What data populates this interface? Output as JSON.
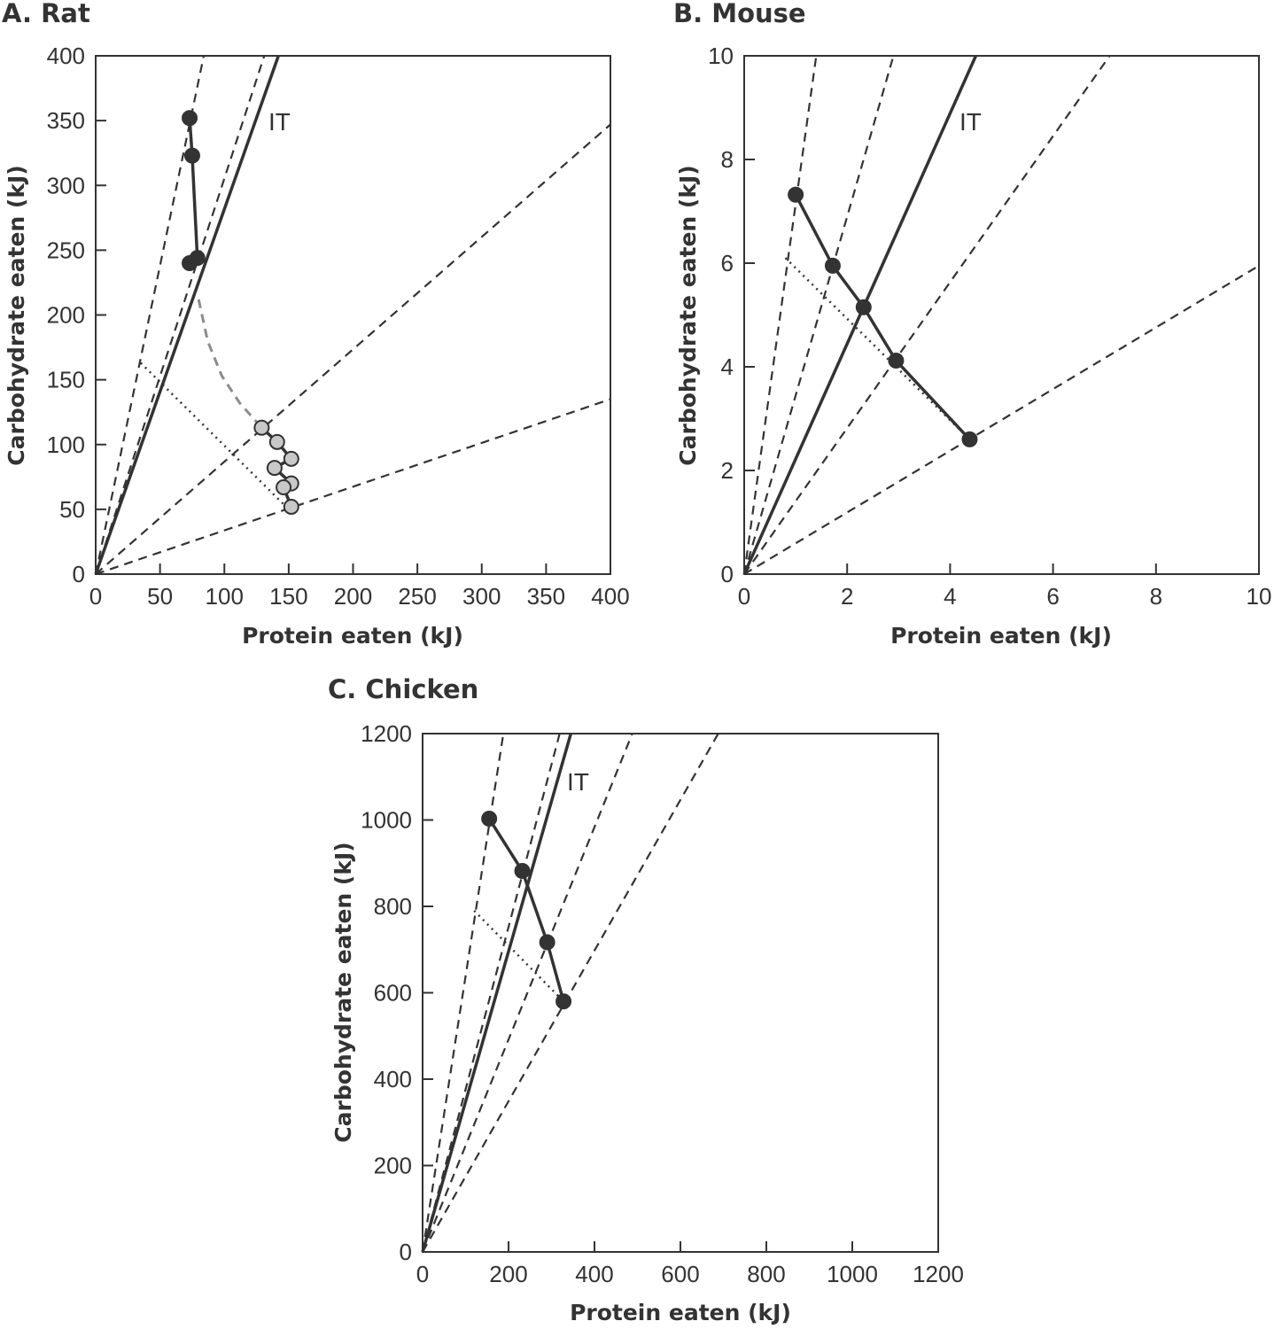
{
  "chart_data": [
    {
      "type": "line",
      "title": "A. Rat",
      "xlabel": "Protein eaten (kJ)",
      "ylabel": "Carbohydrate eaten (kJ)",
      "xlim": [
        0,
        400
      ],
      "ylim": [
        0,
        400
      ],
      "xticks": [
        "0",
        "50",
        "100",
        "150",
        "200",
        "250",
        "300",
        "350",
        "400"
      ],
      "yticks": [
        "0",
        "50",
        "100",
        "150",
        "200",
        "250",
        "300",
        "350",
        "400"
      ],
      "grid": false,
      "annotation": "IT",
      "rails_dashed": [
        {
          "x": [
            0,
            84
          ],
          "y": [
            0,
            400
          ]
        },
        {
          "x": [
            0,
            131
          ],
          "y": [
            0,
            400
          ]
        },
        {
          "x": [
            0,
            400
          ],
          "y": [
            0,
            347
          ]
        },
        {
          "x": [
            0,
            400
          ],
          "y": [
            0,
            135
          ]
        }
      ],
      "rail_solid": {
        "x": [
          0,
          142
        ],
        "y": [
          0,
          400
        ]
      },
      "series": [
        {
          "style": "filled-black",
          "x": [
            73,
            75,
            79,
            73
          ],
          "y": [
            352,
            323,
            244,
            240
          ]
        },
        {
          "style": "filled-gray",
          "x": [
            129,
            141,
            152,
            139,
            152,
            146,
            152
          ],
          "y": [
            113,
            102,
            89,
            82,
            70,
            67,
            52
          ]
        }
      ],
      "dotted_line": {
        "x": [
          35,
          148
        ],
        "y": [
          163,
          52
        ]
      },
      "gray_dashed_curve": {
        "x": [
          80,
          87,
          98,
          112,
          129
        ],
        "y": [
          212,
          180,
          153,
          132,
          113
        ]
      }
    },
    {
      "type": "line",
      "title": "B. Mouse",
      "xlabel": "Protein eaten (kJ)",
      "ylabel": "Carbohydrate eaten (kJ)",
      "xlim": [
        0,
        10
      ],
      "ylim": [
        0,
        10
      ],
      "xticks": [
        "0",
        "2",
        "4",
        "6",
        "8",
        "10"
      ],
      "yticks": [
        "0",
        "2",
        "4",
        "6",
        "8",
        "10"
      ],
      "grid": false,
      "annotation": "IT",
      "rails_dashed": [
        {
          "x": [
            0,
            1.4
          ],
          "y": [
            0,
            10
          ]
        },
        {
          "x": [
            0,
            2.9
          ],
          "y": [
            0,
            10
          ]
        },
        {
          "x": [
            0,
            7.1
          ],
          "y": [
            0,
            10
          ]
        },
        {
          "x": [
            0,
            10
          ],
          "y": [
            0,
            5.95
          ]
        }
      ],
      "rail_solid": {
        "x": [
          0,
          4.5
        ],
        "y": [
          0,
          10
        ]
      },
      "series": [
        {
          "style": "filled-black",
          "x": [
            1.0,
            1.72,
            2.32,
            2.95,
            4.38
          ],
          "y": [
            7.32,
            5.95,
            5.15,
            4.12,
            2.6
          ]
        }
      ],
      "dotted_line": {
        "x": [
          0.8,
          4.38
        ],
        "y": [
          6.1,
          2.6
        ]
      }
    },
    {
      "type": "line",
      "title": "C. Chicken",
      "xlabel": "Protein eaten (kJ)",
      "ylabel": "Carbohydrate eaten (kJ)",
      "xlim": [
        0,
        1200
      ],
      "ylim": [
        0,
        1200
      ],
      "xticks": [
        "0",
        "200",
        "400",
        "600",
        "800",
        "1000",
        "1200"
      ],
      "yticks": [
        "0",
        "200",
        "400",
        "600",
        "800",
        "1000",
        "1200"
      ],
      "grid": false,
      "annotation": "IT",
      "rails_dashed": [
        {
          "x": [
            0,
            188
          ],
          "y": [
            0,
            1200
          ]
        },
        {
          "x": [
            0,
            319
          ],
          "y": [
            0,
            1200
          ]
        },
        {
          "x": [
            0,
            488
          ],
          "y": [
            0,
            1200
          ]
        },
        {
          "x": [
            0,
            688
          ],
          "y": [
            0,
            1200
          ]
        }
      ],
      "rail_solid": {
        "x": [
          0,
          345
        ],
        "y": [
          0,
          1200
        ]
      },
      "series": [
        {
          "style": "filled-black",
          "x": [
            155,
            232,
            290,
            328
          ],
          "y": [
            1003,
            882,
            717,
            580
          ]
        }
      ],
      "dotted_line": {
        "x": [
          120,
          328
        ],
        "y": [
          790,
          580
        ]
      }
    }
  ]
}
